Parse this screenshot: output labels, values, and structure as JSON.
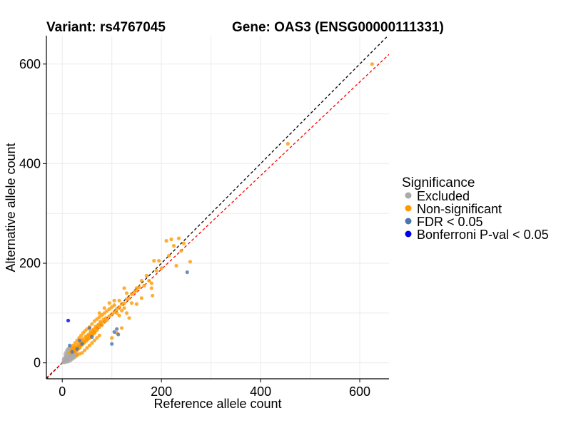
{
  "chart_data": {
    "type": "scatter",
    "title_left": "Variant: rs4767045",
    "title_right": "Gene: OAS3 (ENSG00000111331)",
    "xlabel": "Reference allele count",
    "ylabel": "Alternative allele count",
    "xlim": [
      -32,
      659
    ],
    "ylim": [
      -32,
      657
    ],
    "x_ticks": [
      0,
      200,
      400,
      600
    ],
    "y_ticks": [
      0,
      200,
      400,
      600
    ],
    "x_tick_labels": [
      "0",
      "200",
      "400",
      "600"
    ],
    "y_tick_labels": [
      "0",
      "200",
      "400",
      "600"
    ],
    "grid": true,
    "reference_lines": [
      {
        "name": "identity",
        "slope": 1.0,
        "intercept": 0,
        "color": "#000000",
        "style": "dashed"
      },
      {
        "name": "fit",
        "slope": 0.94,
        "intercept": 0,
        "color": "#ff0000",
        "style": "dashed"
      }
    ],
    "legend": {
      "title": "Significance",
      "placement": "right",
      "entries": [
        {
          "label": "Excluded",
          "color": "#aaaaaa"
        },
        {
          "label": "Non-significant",
          "color": "#ff9900"
        },
        {
          "label": "FDR < 0.05",
          "color": "#4a76b0"
        },
        {
          "label": "Bonferroni P-val < 0.05",
          "color": "#0000ee"
        }
      ]
    },
    "series": [
      {
        "name": "Excluded",
        "color": "#aaaaaa",
        "points": [
          [
            2,
            1
          ],
          [
            3,
            4
          ],
          [
            4,
            2
          ],
          [
            5,
            6
          ],
          [
            6,
            3
          ],
          [
            7,
            8
          ],
          [
            8,
            5
          ],
          [
            9,
            10
          ],
          [
            10,
            7
          ],
          [
            11,
            4
          ],
          [
            12,
            9
          ],
          [
            13,
            12
          ],
          [
            14,
            6
          ],
          [
            15,
            11
          ],
          [
            16,
            14
          ],
          [
            17,
            8
          ],
          [
            18,
            13
          ],
          [
            19,
            16
          ],
          [
            20,
            10
          ],
          [
            21,
            15
          ],
          [
            22,
            18
          ],
          [
            23,
            12
          ],
          [
            24,
            20
          ],
          [
            25,
            17
          ],
          [
            6,
            12
          ],
          [
            4,
            9
          ],
          [
            8,
            15
          ],
          [
            10,
            18
          ],
          [
            12,
            22
          ],
          [
            14,
            25
          ],
          [
            16,
            20
          ],
          [
            18,
            24
          ],
          [
            20,
            28
          ],
          [
            5,
            1
          ],
          [
            9,
            2
          ],
          [
            13,
            3
          ],
          [
            17,
            5
          ],
          [
            21,
            8
          ],
          [
            25,
            11
          ],
          [
            28,
            14
          ],
          [
            30,
            18
          ],
          [
            3,
            7
          ],
          [
            7,
            11
          ],
          [
            11,
            16
          ],
          [
            15,
            19
          ],
          [
            19,
            22
          ],
          [
            23,
            27
          ],
          [
            26,
            23
          ],
          [
            29,
            26
          ],
          [
            32,
            29
          ],
          [
            8,
            22
          ],
          [
            10,
            26
          ],
          [
            14,
            30
          ],
          [
            6,
            18
          ],
          [
            12,
            28
          ],
          [
            16,
            31
          ]
        ]
      },
      {
        "name": "Non-significant",
        "color": "#ff9900",
        "points": [
          [
            15,
            20
          ],
          [
            20,
            24
          ],
          [
            25,
            22
          ],
          [
            28,
            30
          ],
          [
            30,
            26
          ],
          [
            32,
            35
          ],
          [
            35,
            30
          ],
          [
            38,
            40
          ],
          [
            40,
            36
          ],
          [
            42,
            45
          ],
          [
            45,
            42
          ],
          [
            48,
            50
          ],
          [
            50,
            46
          ],
          [
            52,
            55
          ],
          [
            55,
            50
          ],
          [
            58,
            60
          ],
          [
            60,
            56
          ],
          [
            62,
            65
          ],
          [
            65,
            60
          ],
          [
            68,
            70
          ],
          [
            70,
            66
          ],
          [
            72,
            75
          ],
          [
            75,
            72
          ],
          [
            78,
            80
          ],
          [
            80,
            76
          ],
          [
            85,
            82
          ],
          [
            88,
            90
          ],
          [
            90,
            86
          ],
          [
            95,
            94
          ],
          [
            100,
            98
          ],
          [
            105,
            102
          ],
          [
            110,
            108
          ],
          [
            115,
            112
          ],
          [
            120,
            118
          ],
          [
            125,
            120
          ],
          [
            130,
            128
          ],
          [
            135,
            130
          ],
          [
            140,
            138
          ],
          [
            145,
            142
          ],
          [
            150,
            150
          ],
          [
            155,
            152
          ],
          [
            22,
            35
          ],
          [
            26,
            40
          ],
          [
            30,
            45
          ],
          [
            34,
            50
          ],
          [
            38,
            55
          ],
          [
            42,
            60
          ],
          [
            46,
            64
          ],
          [
            50,
            68
          ],
          [
            55,
            72
          ],
          [
            60,
            78
          ],
          [
            65,
            84
          ],
          [
            70,
            88
          ],
          [
            75,
            92
          ],
          [
            80,
            96
          ],
          [
            85,
            100
          ],
          [
            90,
            104
          ],
          [
            95,
            108
          ],
          [
            100,
            112
          ],
          [
            105,
            116
          ],
          [
            110,
            100
          ],
          [
            115,
            95
          ],
          [
            120,
            105
          ],
          [
            125,
            110
          ],
          [
            130,
            100
          ],
          [
            135,
            90
          ],
          [
            40,
            20
          ],
          [
            45,
            25
          ],
          [
            50,
            30
          ],
          [
            55,
            35
          ],
          [
            60,
            40
          ],
          [
            65,
            45
          ],
          [
            70,
            50
          ],
          [
            75,
            55
          ],
          [
            30,
            15
          ],
          [
            35,
            18
          ],
          [
            100,
            50
          ],
          [
            110,
            60
          ],
          [
            120,
            70
          ],
          [
            150,
            145
          ],
          [
            160,
            165
          ],
          [
            165,
            155
          ],
          [
            170,
            175
          ],
          [
            175,
            165
          ],
          [
            180,
            160
          ],
          [
            182,
            135
          ],
          [
            185,
            205
          ],
          [
            195,
            205
          ],
          [
            200,
            190
          ],
          [
            210,
            245
          ],
          [
            215,
            215
          ],
          [
            220,
            248
          ],
          [
            225,
            235
          ],
          [
            230,
            195
          ],
          [
            235,
            250
          ],
          [
            240,
            225
          ],
          [
            245,
            240
          ],
          [
            258,
            203
          ],
          [
            180,
            150
          ],
          [
            190,
            185
          ],
          [
            160,
            130
          ],
          [
            140,
            120
          ],
          [
            150,
            118
          ],
          [
            130,
            140
          ],
          [
            125,
            150
          ],
          [
            115,
            125
          ],
          [
            105,
            125
          ],
          [
            95,
            120
          ],
          [
            85,
            110
          ],
          [
            75,
            100
          ],
          [
            25,
            30
          ],
          [
            28,
            24
          ],
          [
            32,
            28
          ],
          [
            36,
            32
          ],
          [
            44,
            40
          ],
          [
            48,
            44
          ],
          [
            52,
            48
          ],
          [
            56,
            52
          ],
          [
            62,
            58
          ],
          [
            66,
            62
          ],
          [
            18,
            25
          ],
          [
            20,
            30
          ],
          [
            24,
            27
          ],
          [
            27,
            33
          ],
          [
            33,
            38
          ],
          [
            37,
            42
          ],
          [
            41,
            48
          ],
          [
            47,
            53
          ],
          [
            53,
            57
          ],
          [
            57,
            63
          ],
          [
            63,
            67
          ],
          [
            67,
            73
          ],
          [
            73,
            77
          ],
          [
            77,
            83
          ],
          [
            83,
            87
          ],
          [
            455,
            440
          ],
          [
            625,
            600
          ]
        ]
      },
      {
        "name": "FDR < 0.05",
        "color": "#4a76b0",
        "points": [
          [
            15,
            35
          ],
          [
            20,
            22
          ],
          [
            35,
            45
          ],
          [
            55,
            70
          ],
          [
            60,
            52
          ],
          [
            100,
            38
          ],
          [
            105,
            62
          ],
          [
            110,
            68
          ],
          [
            113,
            57
          ],
          [
            252,
            182
          ],
          [
            30,
            28
          ],
          [
            40,
            38
          ]
        ]
      },
      {
        "name": "Bonferroni P-val < 0.05",
        "color": "#0000ee",
        "points": [
          [
            12,
            85
          ]
        ]
      }
    ]
  }
}
